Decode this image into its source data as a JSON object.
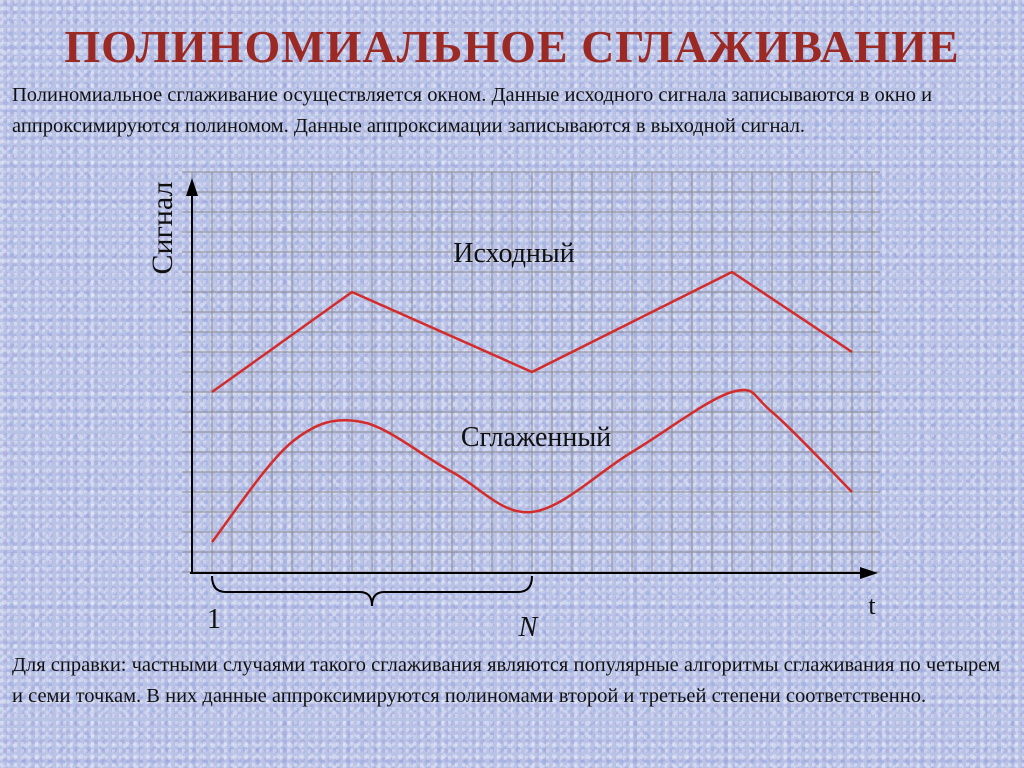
{
  "title": "ПОЛИНОМИАЛЬНОЕ СГЛАЖИВАНИЕ",
  "intro_text": "Полиномиальное сглаживание осуществляется окном. Данные исходного сигнала записываются в окно и аппроксимируются полиномом. Данные аппроксимации записываются в выходной сигнал.",
  "diagram": {
    "y_axis_label": "Сигнал",
    "x_axis_label": "t",
    "original_label": "Исходный",
    "smoothed_label": "Сглаженный",
    "window_start_label": "1",
    "window_end_label": "N",
    "curve_color": "#d42b2b",
    "grid_color": "#8e8e8e",
    "original_signal": [
      [
        0,
        8
      ],
      [
        7,
        13
      ],
      [
        16,
        9
      ],
      [
        26,
        14
      ],
      [
        32,
        10
      ]
    ],
    "smoothed_signal": [
      [
        0,
        0.5
      ],
      [
        4,
        5.5
      ],
      [
        7.5,
        6.5
      ],
      [
        12,
        4
      ],
      [
        16,
        2
      ],
      [
        21,
        5
      ],
      [
        26,
        8
      ],
      [
        28,
        7
      ],
      [
        32,
        3
      ]
    ],
    "window_range": [
      0,
      16
    ]
  },
  "footer_text": "Для справки: частными случаями такого сглаживания являются популярные алгоритмы сглаживания по четырем и семи точкам. В них данные аппроксимируются полиномами второй и третьей степени соответственно."
}
